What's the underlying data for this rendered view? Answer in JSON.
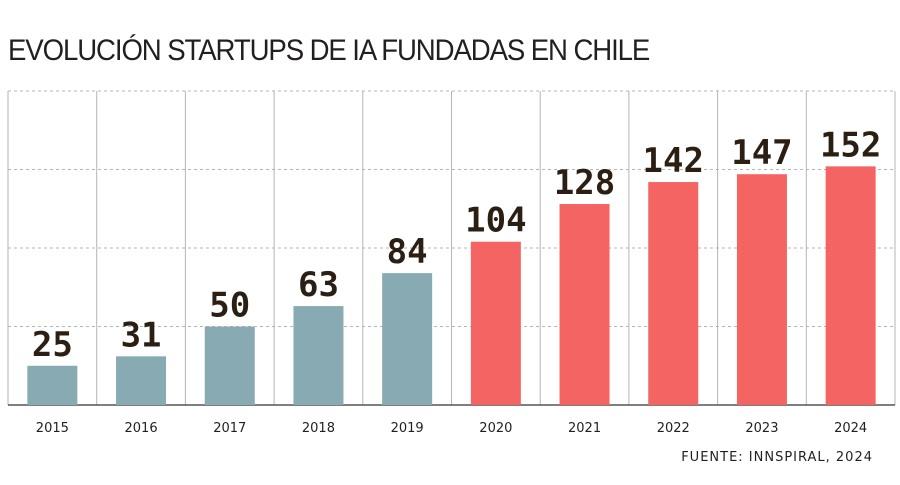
{
  "title": "EVOLUCIÓN STARTUPS DE IA FUNDADAS EN CHILE",
  "source": "FUENTE: INNSPIRAL, 2024",
  "colors": {
    "early": "#88aab2",
    "recent": "#f46462",
    "grid": "#b5b5b5",
    "axis": "#333333",
    "text": "#231f20"
  },
  "chart_data": {
    "type": "bar",
    "title": "EVOLUCIÓN STARTUPS DE IA FUNDADAS EN CHILE",
    "xlabel": "",
    "ylabel": "",
    "categories": [
      "2015",
      "2016",
      "2017",
      "2018",
      "2019",
      "2020",
      "2021",
      "2022",
      "2023",
      "2024"
    ],
    "values": [
      25,
      31,
      50,
      63,
      84,
      104,
      128,
      142,
      147,
      152
    ],
    "color_groups": [
      "early",
      "early",
      "early",
      "early",
      "early",
      "recent",
      "recent",
      "recent",
      "recent",
      "recent"
    ],
    "ylim": [
      0,
      200
    ],
    "gridlines": [
      50,
      100,
      150,
      200
    ],
    "grid": true,
    "legend": "none"
  }
}
